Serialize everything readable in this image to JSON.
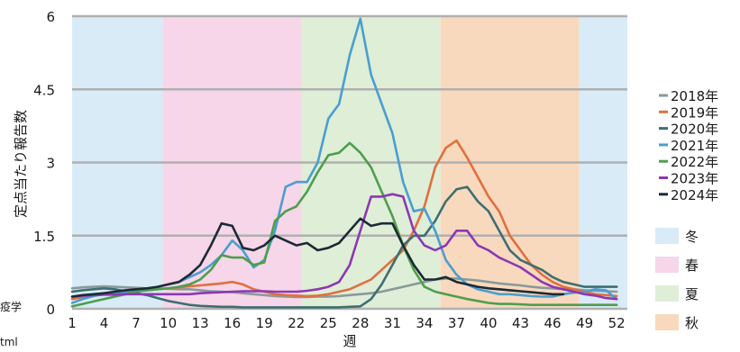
{
  "edge_text": {
    "left_top": "疫学",
    "left_bottom": "tml"
  },
  "chart_data": {
    "type": "line",
    "title": "",
    "xlabel": "週",
    "ylabel": "定点当たり報告数",
    "ylim": [
      0,
      6
    ],
    "xlim": [
      1,
      53
    ],
    "grid": true,
    "legend_placement": "right",
    "y_ticks": [
      {
        "value": 0,
        "label": "0"
      },
      {
        "value": 1.5,
        "label": "1.5"
      },
      {
        "value": 3,
        "label": "3"
      },
      {
        "value": 4.5,
        "label": "4.5"
      },
      {
        "value": 6,
        "label": "6"
      }
    ],
    "x_ticks": [
      1,
      4,
      7,
      10,
      13,
      16,
      19,
      22,
      25,
      28,
      31,
      34,
      37,
      40,
      43,
      46,
      49,
      52
    ],
    "seasons": [
      {
        "name": "冬",
        "color": "#d8ebf7",
        "x_start": 1,
        "x_end": 9.5
      },
      {
        "name": "春",
        "color": "#f6d6e8",
        "x_start": 9.5,
        "x_end": 22.5
      },
      {
        "name": "夏",
        "color": "#dfeed7",
        "x_start": 22.5,
        "x_end": 35.5
      },
      {
        "name": "秋",
        "color": "#f9d9bd",
        "x_start": 35.5,
        "x_end": 48.5
      },
      {
        "name": "冬",
        "color": "#d8ebf7",
        "x_start": 48.5,
        "x_end": 53
      }
    ],
    "season_legend": [
      {
        "name": "冬",
        "color": "#d8ebf7"
      },
      {
        "name": "春",
        "color": "#f6d6e8"
      },
      {
        "name": "夏",
        "color": "#dfeed7"
      },
      {
        "name": "秋",
        "color": "#f9d9bd"
      }
    ],
    "series": [
      {
        "name": "2018年",
        "color": "#8a9a9a",
        "x_start": 1,
        "values": [
          0.42,
          0.44,
          0.45,
          0.46,
          0.45,
          0.44,
          0.43,
          0.42,
          0.42,
          0.41,
          0.4,
          0.4,
          0.38,
          0.36,
          0.35,
          0.34,
          0.32,
          0.3,
          0.28,
          0.26,
          0.25,
          0.24,
          0.24,
          0.25,
          0.25,
          0.26,
          0.28,
          0.3,
          0.32,
          0.35,
          0.4,
          0.45,
          0.5,
          0.55,
          0.6,
          0.62,
          0.62,
          0.6,
          0.58,
          0.55,
          0.52,
          0.5,
          0.48,
          0.45,
          0.43,
          0.42,
          0.4,
          0.4,
          0.38,
          0.37,
          0.36,
          0.35
        ]
      },
      {
        "name": "2019年",
        "color": "#e0703e",
        "x_start": 1,
        "values": [
          0.2,
          0.24,
          0.28,
          0.3,
          0.32,
          0.34,
          0.36,
          0.38,
          0.4,
          0.42,
          0.44,
          0.46,
          0.48,
          0.5,
          0.52,
          0.55,
          0.5,
          0.4,
          0.35,
          0.3,
          0.28,
          0.27,
          0.26,
          0.27,
          0.3,
          0.35,
          0.4,
          0.5,
          0.6,
          0.8,
          1.0,
          1.2,
          1.6,
          2.1,
          2.9,
          3.3,
          3.45,
          3.1,
          2.7,
          2.3,
          2.0,
          1.5,
          1.2,
          0.9,
          0.7,
          0.55,
          0.45,
          0.4,
          0.35,
          0.3,
          0.28,
          0.26
        ]
      },
      {
        "name": "2020年",
        "color": "#3f6e72",
        "x_start": 1,
        "values": [
          0.35,
          0.38,
          0.4,
          0.42,
          0.4,
          0.36,
          0.32,
          0.28,
          0.22,
          0.16,
          0.12,
          0.08,
          0.06,
          0.05,
          0.04,
          0.04,
          0.03,
          0.03,
          0.03,
          0.03,
          0.03,
          0.03,
          0.03,
          0.03,
          0.03,
          0.03,
          0.04,
          0.05,
          0.2,
          0.5,
          0.9,
          1.3,
          1.5,
          1.5,
          1.8,
          2.2,
          2.45,
          2.5,
          2.2,
          2.0,
          1.6,
          1.2,
          1.0,
          0.9,
          0.8,
          0.65,
          0.55,
          0.5,
          0.45,
          0.45,
          0.45,
          0.45
        ]
      },
      {
        "name": "2021年",
        "color": "#4a9ed0",
        "x_start": 1,
        "values": [
          0.12,
          0.2,
          0.26,
          0.3,
          0.33,
          0.35,
          0.38,
          0.4,
          0.45,
          0.5,
          0.55,
          0.65,
          0.75,
          0.9,
          1.1,
          1.4,
          1.2,
          0.85,
          1.0,
          1.6,
          2.5,
          2.6,
          2.6,
          3.0,
          3.9,
          4.2,
          5.2,
          5.95,
          4.8,
          4.2,
          3.6,
          2.6,
          2.0,
          2.05,
          1.6,
          1.0,
          0.7,
          0.5,
          0.4,
          0.35,
          0.3,
          0.3,
          0.28,
          0.26,
          0.25,
          0.25,
          0.3,
          0.33,
          0.35,
          0.4,
          0.38,
          0.2
        ]
      },
      {
        "name": "2022年",
        "color": "#4e9e4e",
        "x_start": 1,
        "values": [
          0.05,
          0.1,
          0.15,
          0.2,
          0.25,
          0.3,
          0.35,
          0.38,
          0.4,
          0.42,
          0.45,
          0.5,
          0.6,
          0.8,
          1.1,
          1.05,
          1.05,
          0.9,
          0.95,
          1.8,
          2.0,
          2.1,
          2.4,
          2.8,
          3.15,
          3.2,
          3.4,
          3.2,
          2.9,
          2.4,
          1.9,
          1.3,
          0.8,
          0.45,
          0.35,
          0.3,
          0.25,
          0.2,
          0.16,
          0.12,
          0.1,
          0.1,
          0.09,
          0.08,
          0.08,
          0.08,
          0.08,
          0.08,
          0.08,
          0.08,
          0.08,
          0.08
        ]
      },
      {
        "name": "2023年",
        "color": "#8b38b4",
        "x_start": 1,
        "values": [
          0.25,
          0.27,
          0.28,
          0.29,
          0.29,
          0.3,
          0.3,
          0.3,
          0.3,
          0.3,
          0.3,
          0.3,
          0.32,
          0.33,
          0.34,
          0.35,
          0.36,
          0.36,
          0.36,
          0.35,
          0.35,
          0.35,
          0.37,
          0.4,
          0.45,
          0.55,
          0.9,
          1.6,
          2.3,
          2.3,
          2.35,
          2.3,
          1.6,
          1.3,
          1.2,
          1.3,
          1.6,
          1.6,
          1.3,
          1.2,
          1.05,
          0.95,
          0.85,
          0.7,
          0.55,
          0.45,
          0.4,
          0.35,
          0.3,
          0.27,
          0.22,
          0.2
        ]
      },
      {
        "name": "2024年",
        "color": "#1c2a36",
        "x_start": 1,
        "values": [
          0.25,
          0.28,
          0.3,
          0.32,
          0.35,
          0.38,
          0.4,
          0.42,
          0.45,
          0.5,
          0.55,
          0.7,
          0.9,
          1.3,
          1.75,
          1.7,
          1.25,
          1.2,
          1.3,
          1.5,
          1.4,
          1.3,
          1.35,
          1.2,
          1.25,
          1.35,
          1.6,
          1.85,
          1.7,
          1.75,
          1.75,
          1.3,
          0.9,
          0.6,
          0.6,
          0.65,
          0.55,
          0.5,
          0.45,
          0.42,
          0.4,
          0.38,
          0.36,
          0.34,
          0.32,
          0.3,
          0.3
        ]
      }
    ]
  }
}
